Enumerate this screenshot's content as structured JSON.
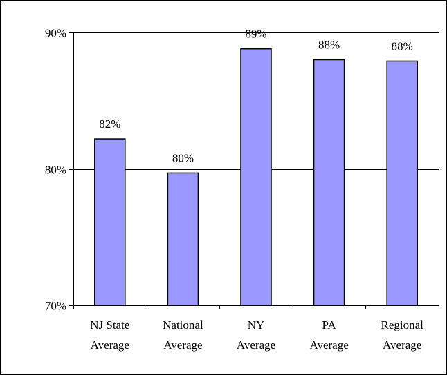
{
  "chart_data": {
    "type": "bar",
    "title": "",
    "xlabel": "",
    "ylabel": "",
    "categories": [
      [
        "NJ State",
        "Average"
      ],
      [
        "National",
        "Average"
      ],
      [
        "NY",
        "Average"
      ],
      [
        "PA",
        "Average"
      ],
      [
        "Regional",
        "Average"
      ]
    ],
    "values": [
      82.2,
      79.7,
      88.8,
      88.0,
      87.9
    ],
    "data_labels": [
      "82%",
      "80%",
      "89%",
      "88%",
      "88%"
    ],
    "ylim": [
      70,
      90
    ],
    "yticks": [
      70,
      80,
      90
    ],
    "ytick_labels": [
      "70%",
      "80%",
      "90%"
    ],
    "gridlines": [
      80,
      90
    ],
    "grid": true,
    "legend": "none",
    "colors": {
      "bar_fill": "#9999ff",
      "bar_stroke": "#000000",
      "axis": "#000000",
      "frame": "#000000",
      "background": "#ffffff"
    }
  }
}
